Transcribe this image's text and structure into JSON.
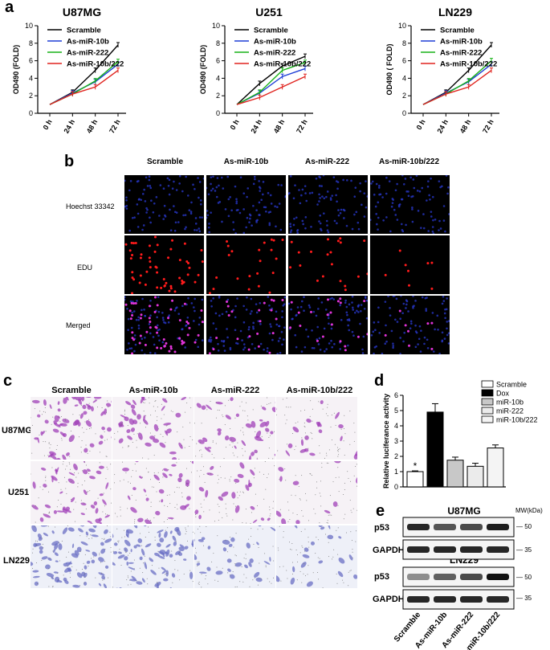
{
  "panel_labels": {
    "a": "a",
    "b": "b",
    "c": "c",
    "d": "d",
    "e": "e"
  },
  "colors": {
    "black": "#000000",
    "blue": "#1f3fd6",
    "green": "#17b217",
    "red": "#e0231e"
  },
  "chart_data": [
    {
      "type": "line",
      "title": "U87MG",
      "ylabel": "OD490 (FOLD)",
      "categories": [
        "0 h",
        "24 h",
        "48 h",
        "72 h"
      ],
      "ylim": [
        0,
        10
      ],
      "yticks": [
        "0",
        "2",
        "4",
        "6",
        "8",
        "10"
      ],
      "series": [
        {
          "name": "Scramble",
          "values": [
            1.0,
            2.4,
            4.9,
            7.8
          ]
        },
        {
          "name": "As-miR-10b",
          "values": [
            1.0,
            2.3,
            3.6,
            5.6
          ]
        },
        {
          "name": "As-miR-222",
          "values": [
            1.0,
            2.2,
            3.7,
            5.9
          ]
        },
        {
          "name": "As-miR-10b/222",
          "values": [
            1.0,
            2.2,
            3.0,
            4.9
          ]
        }
      ]
    },
    {
      "type": "line",
      "title": "U251",
      "ylabel": "OD490 (FOLD)",
      "categories": [
        "0 h",
        "24 h",
        "48 h",
        "72 h"
      ],
      "ylim": [
        0,
        10
      ],
      "yticks": [
        "0",
        "2",
        "4",
        "6",
        "8",
        "10"
      ],
      "series": [
        {
          "name": "Scramble",
          "values": [
            1.0,
            3.4,
            5.4,
            6.5
          ]
        },
        {
          "name": "As-miR-10b",
          "values": [
            1.0,
            2.3,
            4.2,
            5.1
          ]
        },
        {
          "name": "As-miR-222",
          "values": [
            1.0,
            2.4,
            4.9,
            5.8
          ]
        },
        {
          "name": "As-miR-10b/222",
          "values": [
            1.0,
            1.8,
            3.0,
            4.2
          ]
        }
      ]
    },
    {
      "type": "line",
      "title": "LN229",
      "ylabel": "OD490 ( FOLD)",
      "categories": [
        "0 h",
        "24 h",
        "48 h",
        "72 h"
      ],
      "ylim": [
        0,
        10
      ],
      "yticks": [
        "0",
        "2",
        "4",
        "6",
        "8",
        "10"
      ],
      "series": [
        {
          "name": "Scramble",
          "values": [
            1.0,
            2.4,
            4.9,
            7.8
          ]
        },
        {
          "name": "As-miR-10b",
          "values": [
            1.0,
            2.3,
            3.6,
            5.6
          ]
        },
        {
          "name": "As-miR-222",
          "values": [
            1.0,
            2.2,
            3.7,
            6.0
          ]
        },
        {
          "name": "As-miR-10b/222",
          "values": [
            1.0,
            2.2,
            3.0,
            4.9
          ]
        }
      ]
    },
    {
      "type": "bar",
      "ylabel": "Relative luciferance activity",
      "ylim": [
        0,
        6
      ],
      "yticks": [
        "0",
        "1",
        "2",
        "3",
        "4",
        "5",
        "6"
      ],
      "categories": [
        "Scramble",
        "Dox",
        "miR-10b",
        "miR-222",
        "miR-10b/222"
      ],
      "values": [
        1.0,
        4.9,
        1.75,
        1.35,
        2.55
      ],
      "errors": [
        0.05,
        0.55,
        0.2,
        0.2,
        0.2
      ],
      "annotation": "*",
      "legend": "top-right"
    }
  ],
  "panel_b": {
    "columns": [
      "Scramble",
      "As-miR-10b",
      "As-miR-222",
      "As-miR-10b/222"
    ],
    "rows": [
      "Hoechst 33342",
      "EDU",
      "Merged"
    ]
  },
  "panel_c": {
    "columns": [
      "Scramble",
      "As-miR-10b",
      "As-miR-222",
      "As-miR-10b/222"
    ],
    "rows": [
      "U87MG",
      "U251",
      "LN229"
    ]
  },
  "panel_e": {
    "mw_header": "MW(kDa)",
    "blocks": [
      {
        "title": "U87MG",
        "bands": [
          {
            "label": "p53",
            "mw": "50"
          },
          {
            "label": "GAPDH",
            "mw": "35"
          }
        ]
      },
      {
        "title": "LN229",
        "bands": [
          {
            "label": "p53",
            "mw": "50"
          },
          {
            "label": "GAPDH",
            "mw": "35"
          }
        ]
      }
    ],
    "lanes": [
      "Scramble",
      "As-miR-10b",
      "As-miR-222",
      "As-miR-10b/222"
    ]
  }
}
